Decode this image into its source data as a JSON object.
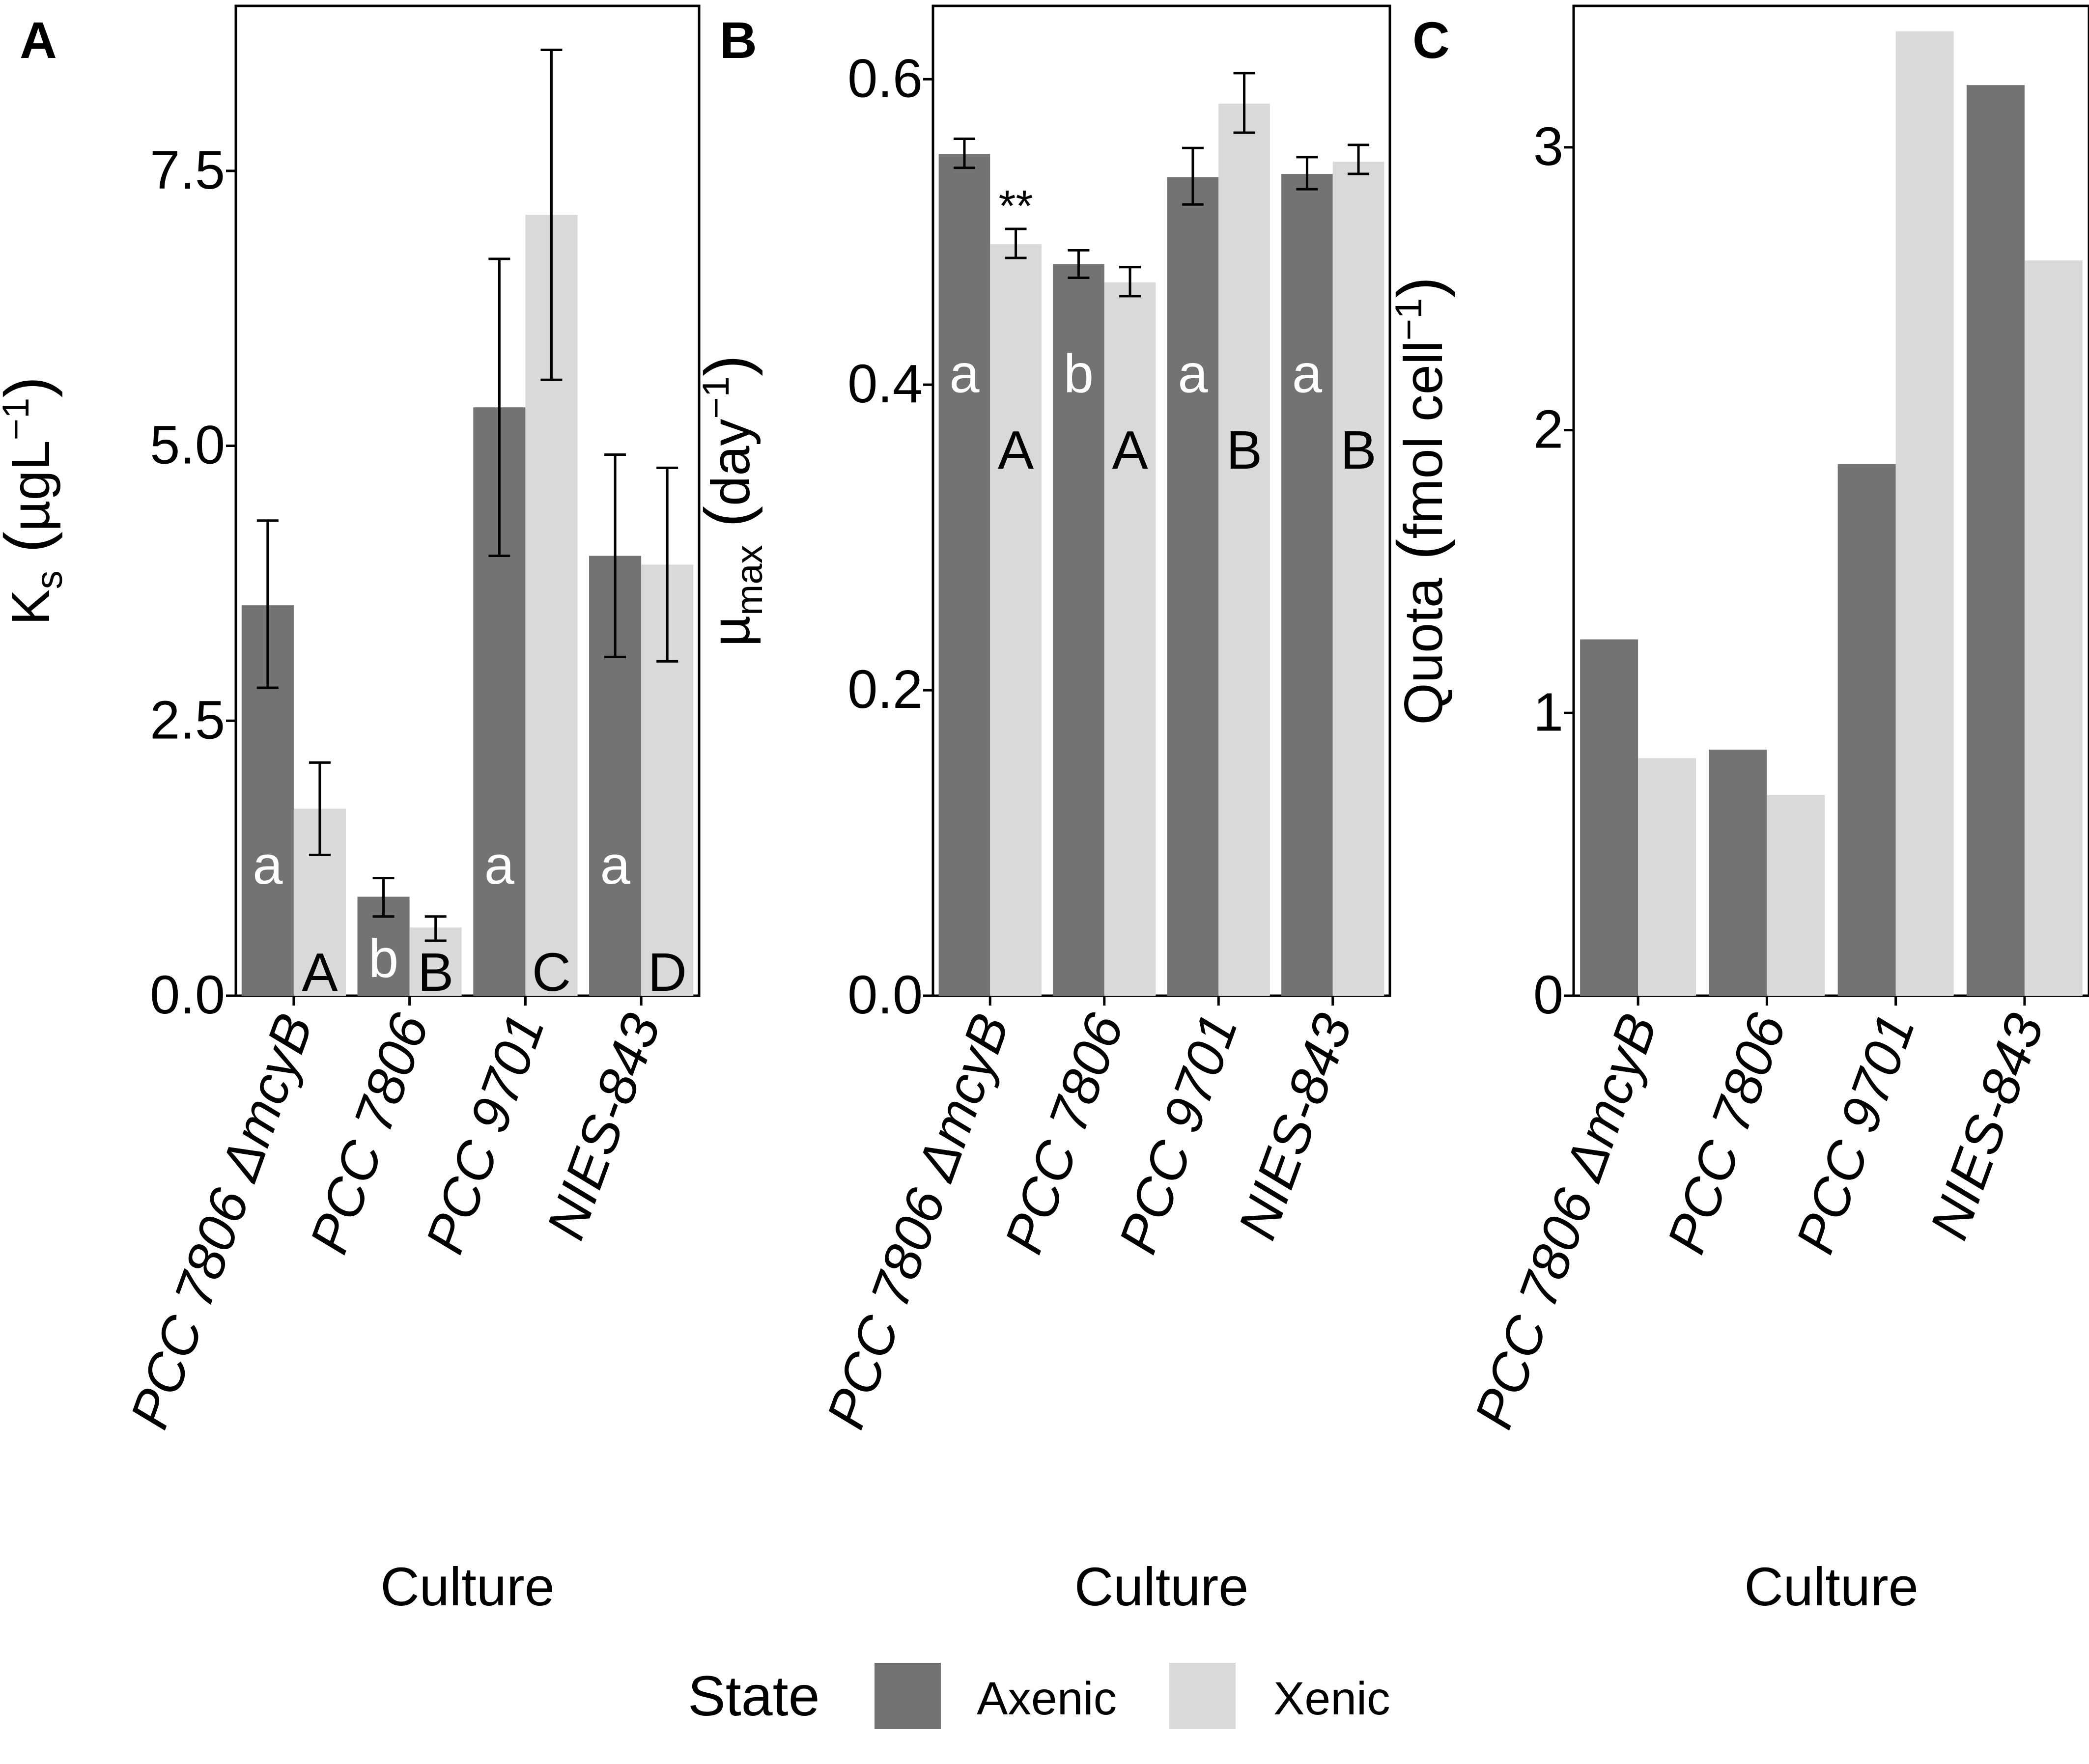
{
  "chart_data": [
    {
      "panel": "A",
      "type": "bar",
      "categories": [
        "PCC 7806 ΔmcyB",
        "PCC 7806",
        "PCC 9701",
        "NIES-843"
      ],
      "series": [
        {
          "name": "Axenic",
          "values": [
            3.55,
            0.9,
            5.35,
            4.0
          ],
          "error_low": [
            2.8,
            0.72,
            4.0,
            3.08
          ],
          "error_high": [
            4.32,
            1.07,
            6.7,
            4.92
          ]
        },
        {
          "name": "Xenic",
          "values": [
            1.7,
            0.62,
            7.1,
            3.92
          ],
          "error_low": [
            1.28,
            0.5,
            5.6,
            3.04
          ],
          "error_high": [
            2.12,
            0.72,
            8.6,
            4.8
          ]
        }
      ],
      "ylabel_main": "K",
      "ylabel_sub": "s",
      "ylabel_unit": "µgL",
      "ylabel_sup": "−1",
      "xlabel": "Culture",
      "ylim": [
        0,
        9.0
      ],
      "yticks": [
        "0.0",
        "2.5",
        "5.0",
        "7.5"
      ],
      "ytick_values": [
        0,
        2.5,
        5.0,
        7.5
      ],
      "letters_axenic": [
        "a",
        "b",
        "a",
        "a"
      ],
      "letters_xenic": [
        "A",
        "B",
        "C",
        "D"
      ]
    },
    {
      "panel": "B",
      "type": "bar",
      "categories": [
        "PCC 7806 ΔmcyB",
        "PCC 7806",
        "PCC 9701",
        "NIES-843"
      ],
      "series": [
        {
          "name": "Axenic",
          "values": [
            0.551,
            0.479,
            0.536,
            0.538
          ],
          "error_low": [
            0.542,
            0.47,
            0.518,
            0.528
          ],
          "error_high": [
            0.561,
            0.488,
            0.555,
            0.549
          ]
        },
        {
          "name": "Xenic",
          "values": [
            0.492,
            0.467,
            0.584,
            0.546
          ],
          "error_low": [
            0.483,
            0.458,
            0.565,
            0.538
          ],
          "error_high": [
            0.502,
            0.477,
            0.604,
            0.557
          ]
        }
      ],
      "ylabel_main": "µ",
      "ylabel_sub": "max",
      "ylabel_unit": "day",
      "ylabel_sup": "−1",
      "xlabel": "Culture",
      "ylim": [
        0,
        0.648
      ],
      "yticks": [
        "0.0",
        "0.2",
        "0.4",
        "0.6"
      ],
      "ytick_values": [
        0,
        0.2,
        0.4,
        0.6
      ],
      "letters_axenic": [
        "a",
        "b",
        "a",
        "a"
      ],
      "letters_xenic": [
        "A",
        "A",
        "B",
        "B"
      ],
      "significance": "**"
    },
    {
      "panel": "C",
      "type": "bar",
      "categories": [
        "PCC 7806 ΔmcyB",
        "PCC 7806",
        "PCC 9701",
        "NIES-843"
      ],
      "series": [
        {
          "name": "Axenic",
          "values": [
            1.26,
            0.87,
            1.88,
            3.22
          ]
        },
        {
          "name": "Xenic",
          "values": [
            0.84,
            0.71,
            3.41,
            2.6
          ]
        }
      ],
      "ylabel_main": "Quota",
      "ylabel_unit": "fmol cell",
      "ylabel_sup": "−1",
      "xlabel": "Culture",
      "ylim": [
        0,
        3.5
      ],
      "yticks": [
        "0",
        "1",
        "2",
        "3"
      ],
      "ytick_values": [
        0,
        1,
        2,
        3
      ]
    }
  ],
  "legend": {
    "title": "State",
    "items": [
      {
        "label": "Axenic",
        "color": "#737373"
      },
      {
        "label": "Xenic",
        "color": "#d9d9d9"
      }
    ]
  },
  "colors": {
    "axenic": "#737373",
    "xenic": "#d9d9d9",
    "axis": "#000000",
    "letter_on_dark": "#ffffff"
  }
}
